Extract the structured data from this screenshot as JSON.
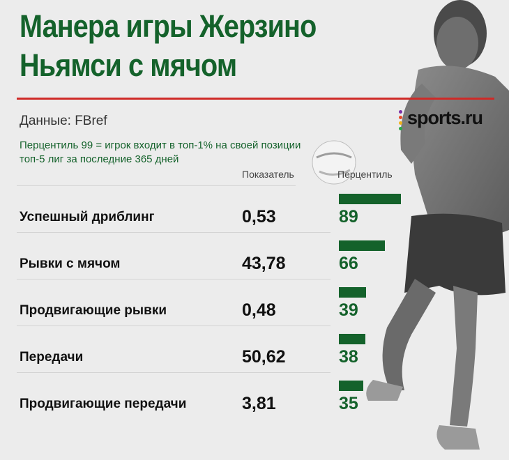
{
  "title_lines": [
    "Манера игры Жерзино",
    "Ньямси с мячом"
  ],
  "source": "Данные: FBref",
  "logo_text": "sports.ru",
  "note": "Перцентиль 99 = игрок входит в топ-1% на своей позиции  топ-5 лиг за последние 365 дней",
  "chart_data": {
    "type": "table",
    "columns": [
      "Показатель",
      "Перцентиль"
    ],
    "percentile_max": 100,
    "rows": [
      {
        "label": "Успешный дриблинг",
        "value": "0,53",
        "percentile": 89
      },
      {
        "label": "Рывки с мячом",
        "value": "43,78",
        "percentile": 66
      },
      {
        "label": "Продвигающие рывки",
        "value": "0,48",
        "percentile": 39
      },
      {
        "label": "Передачи",
        "value": "50,62",
        "percentile": 38
      },
      {
        "label": "Продвигающие передачи",
        "value": "3,81",
        "percentile": 35
      }
    ]
  },
  "colors": {
    "accent_green": "#14622b",
    "rule_red": "#cf2a27",
    "background": "#ececec",
    "logo_dots": [
      "#7b2fa5",
      "#e84a27",
      "#f2b21b",
      "#2aa84a"
    ]
  },
  "icons": {
    "logo": "sports-ru-logo-icon",
    "photo": "player-photo-icon",
    "ball": "ball-icon"
  }
}
